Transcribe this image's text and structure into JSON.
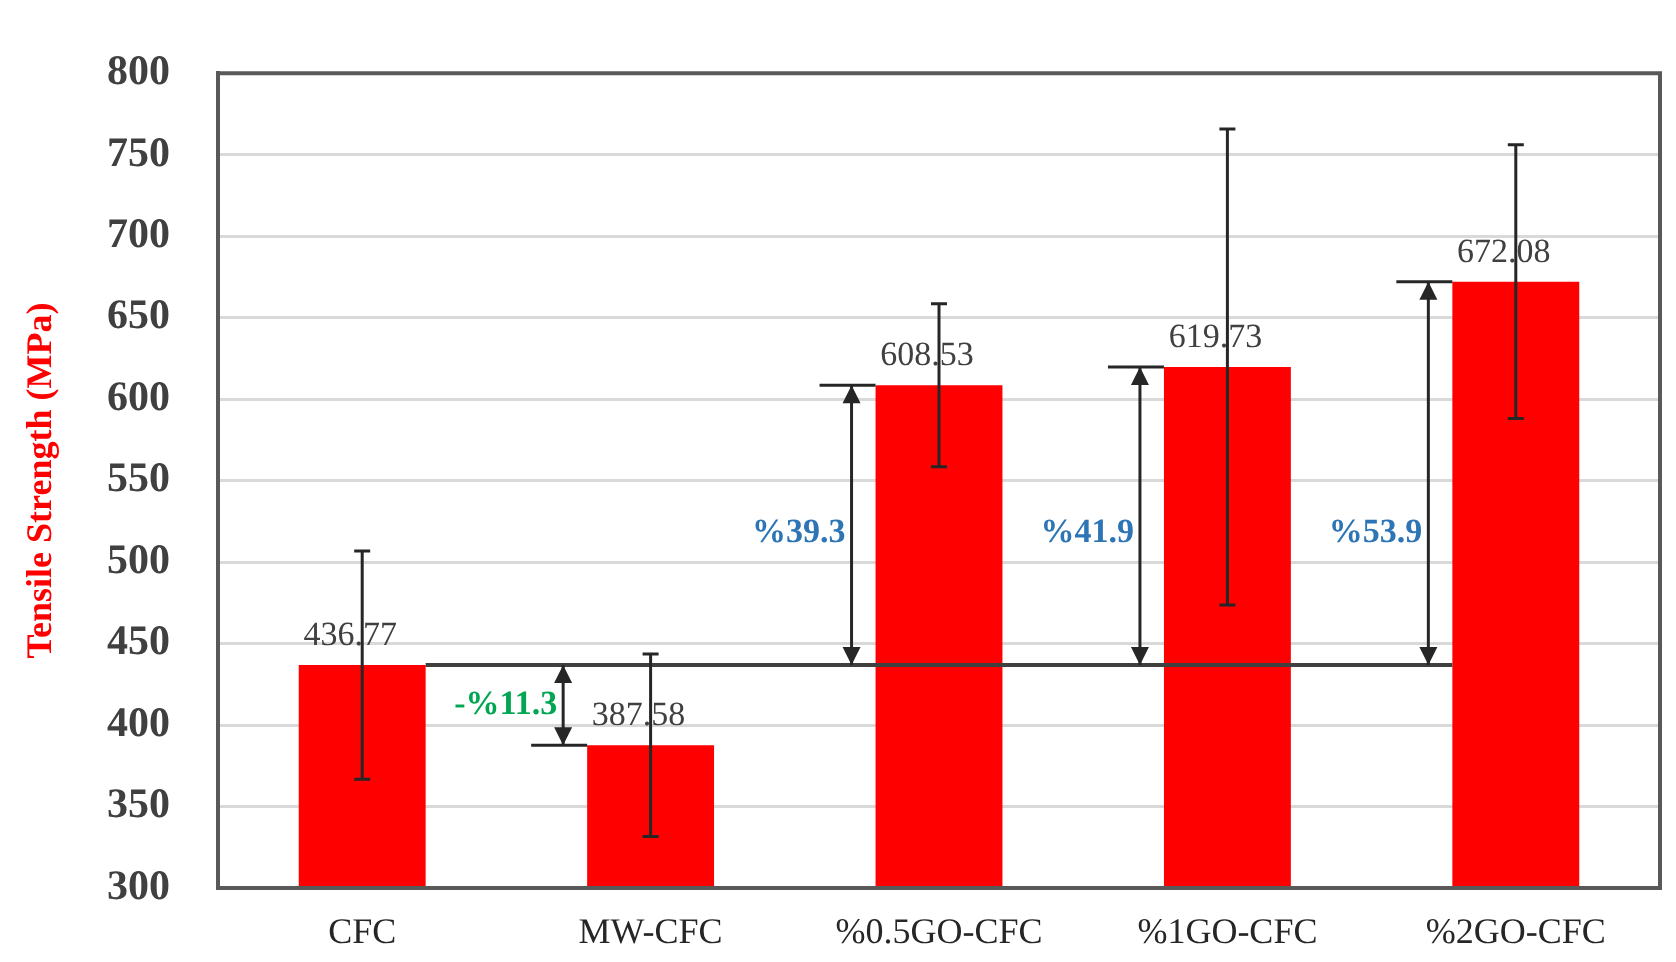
{
  "chart_data": {
    "type": "bar",
    "ylabel": "Tensile Strength (MPa)",
    "categories": [
      "CFC",
      "MW-CFC",
      "%0.5GO-CFC",
      "%1GO-CFC",
      "%2GO-CFC"
    ],
    "values": [
      436.77,
      387.58,
      608.53,
      619.73,
      672.08
    ],
    "color": "#ff0000",
    "errors": [
      70,
      56,
      50,
      146,
      84
    ],
    "ylim": [
      300,
      800
    ],
    "yticks": [
      300,
      350,
      400,
      450,
      500,
      550,
      600,
      650,
      700,
      750,
      800
    ],
    "grid": "y",
    "legend": false,
    "data_labels": true,
    "ref_lines": [
      {
        "axis": "y",
        "value": 436.77
      }
    ],
    "annotations": [
      "-%11.3",
      "%39.3",
      "%41.9",
      "%53.9"
    ]
  }
}
